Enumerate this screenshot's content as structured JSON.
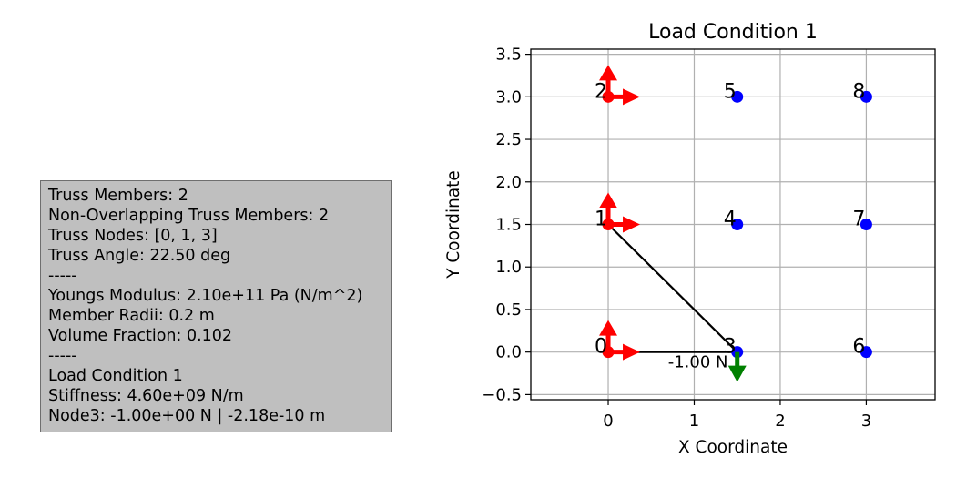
{
  "info_panel": {
    "lines": [
      "Truss Members: 2",
      "Non-Overlapping Truss Members: 2",
      "Truss Nodes: [0, 1, 3]",
      "Truss Angle: 22.50 deg",
      "-----",
      "Youngs Modulus: 2.10e+11 Pa (N/m^2)",
      "Member Radii: 0.2 m",
      "Volume Fraction: 0.102",
      "-----",
      "Load Condition 1",
      "Stiffness: 4.60e+09 N/m",
      "Node3: -1.00e+00 N | -2.18e-10 m"
    ]
  },
  "chart_data": {
    "type": "scatter",
    "title": "Load Condition 1",
    "xlabel": "X Coordinate",
    "ylabel": "Y Coordinate",
    "xlim": [
      -0.9,
      3.8
    ],
    "ylim": [
      -0.56,
      3.56
    ],
    "xticks": [
      0,
      1,
      2,
      3
    ],
    "yticks": [
      -0.5,
      0.0,
      0.5,
      1.0,
      1.5,
      2.0,
      2.5,
      3.0,
      3.5
    ],
    "xtick_labels": [
      "0",
      "1",
      "2",
      "3"
    ],
    "ytick_labels": [
      "−0.5",
      "0.0",
      "0.5",
      "1.0",
      "1.5",
      "2.0",
      "2.5",
      "3.0",
      "3.5"
    ],
    "grid": true,
    "nodes": [
      {
        "id": "0",
        "x": 0.0,
        "y": 0.0,
        "support": true
      },
      {
        "id": "1",
        "x": 0.0,
        "y": 1.5,
        "support": true
      },
      {
        "id": "2",
        "x": 0.0,
        "y": 3.0,
        "support": true
      },
      {
        "id": "3",
        "x": 1.5,
        "y": 0.0,
        "support": false
      },
      {
        "id": "4",
        "x": 1.5,
        "y": 1.5,
        "support": false
      },
      {
        "id": "5",
        "x": 1.5,
        "y": 3.0,
        "support": false
      },
      {
        "id": "6",
        "x": 3.0,
        "y": 0.0,
        "support": false
      },
      {
        "id": "7",
        "x": 3.0,
        "y": 1.5,
        "support": false
      },
      {
        "id": "8",
        "x": 3.0,
        "y": 3.0,
        "support": false
      }
    ],
    "members": [
      {
        "from": "0",
        "to": "3"
      },
      {
        "from": "1",
        "to": "3"
      }
    ],
    "loads": [
      {
        "node": "3",
        "fx": 0.0,
        "fy": -1.0,
        "label": "-1.00 N"
      }
    ],
    "colors": {
      "node": "#0000ff",
      "support": "#ff0000",
      "load": "#008000",
      "member": "#000000",
      "grid": "#b0b0b0"
    }
  }
}
